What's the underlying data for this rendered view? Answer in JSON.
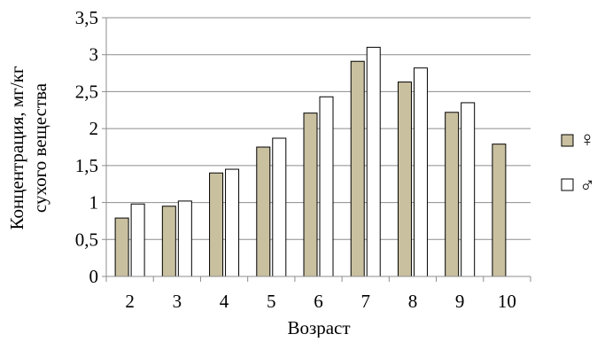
{
  "chart_data": {
    "type": "bar",
    "title": "",
    "xlabel": "Возраст",
    "ylabel_lines": [
      "Концентрация, мг/кг",
      "сухого вещества"
    ],
    "categories": [
      "2",
      "3",
      "4",
      "5",
      "6",
      "7",
      "8",
      "9",
      "10"
    ],
    "series": [
      {
        "name": "♀",
        "values": [
          0.79,
          0.95,
          1.4,
          1.75,
          2.21,
          2.91,
          2.63,
          2.22,
          1.79
        ]
      },
      {
        "name": "♂",
        "values": [
          0.98,
          1.02,
          1.45,
          1.87,
          2.43,
          3.1,
          2.82,
          2.35,
          null
        ]
      }
    ],
    "ylim": [
      0,
      3.5
    ],
    "yticks": [
      "0",
      "0,5",
      "1",
      "1,5",
      "2",
      "2,5",
      "3",
      "3,5"
    ],
    "grid": true,
    "legend_position": "right",
    "colors": {
      "female": "#c9c0a0",
      "male": "#ffffff",
      "outline": "#000000",
      "gridline": "#8c8c8c"
    }
  }
}
